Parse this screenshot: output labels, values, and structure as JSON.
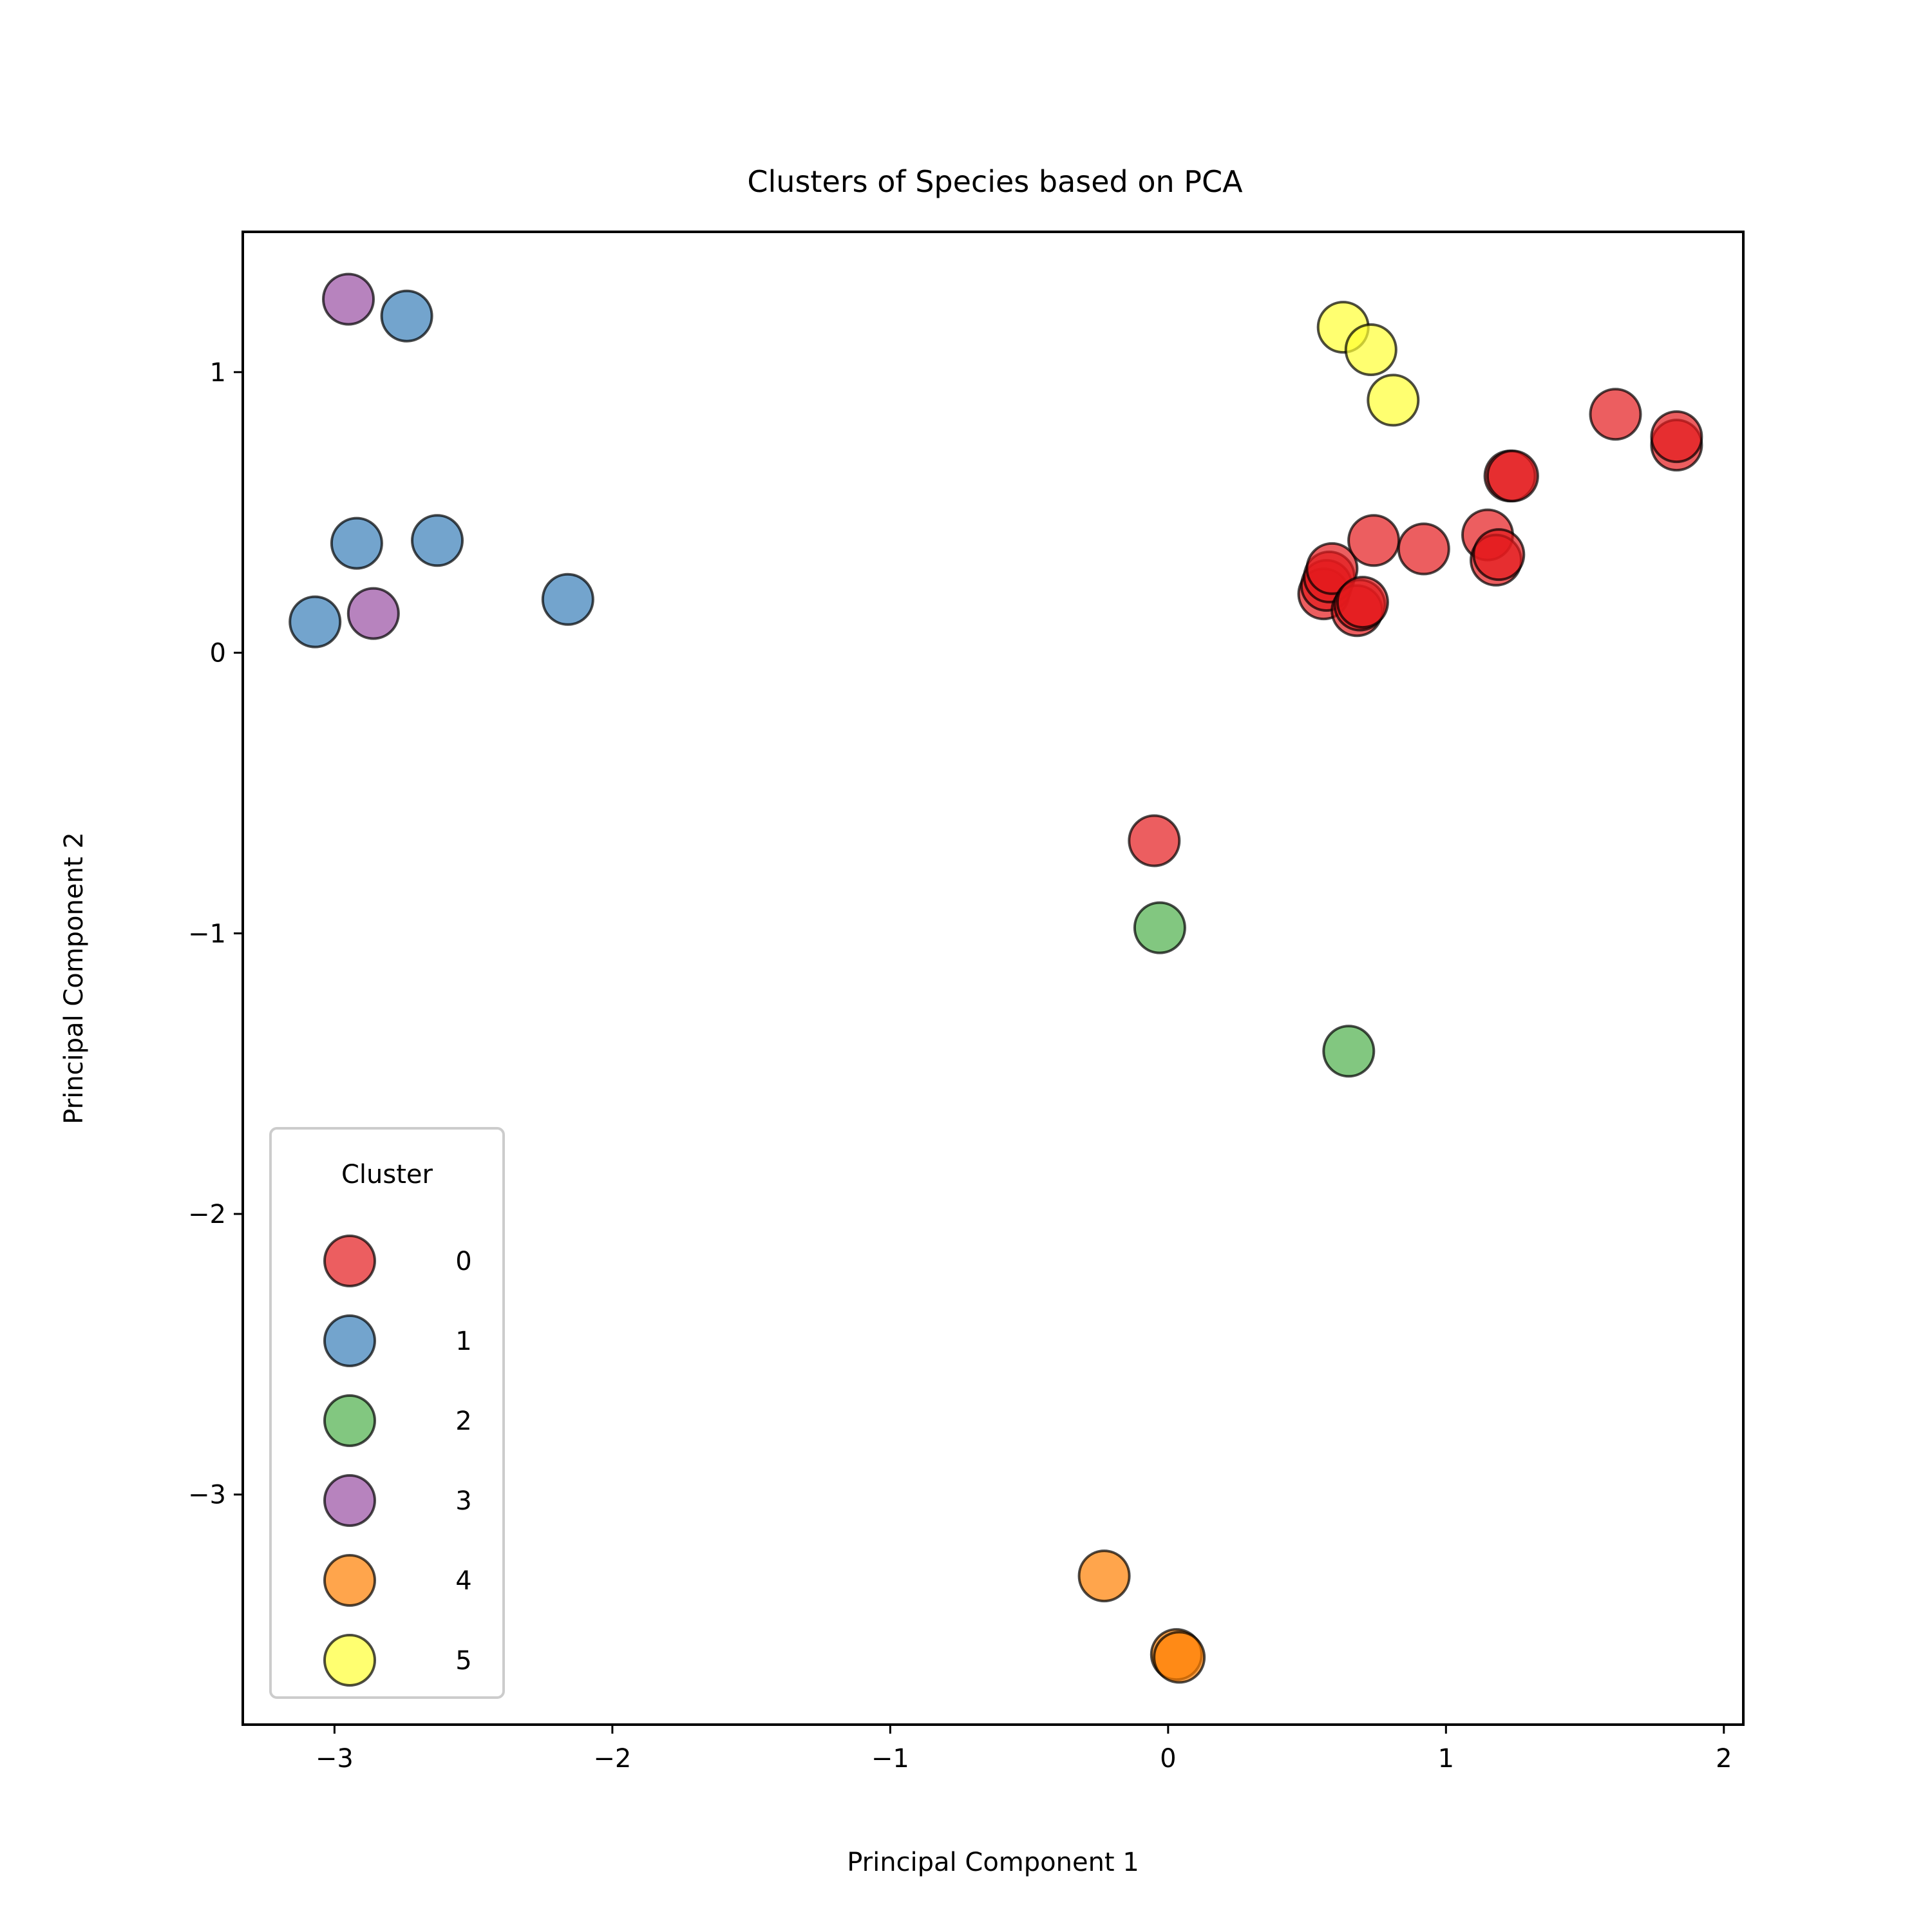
{
  "chart_data": {
    "type": "scatter",
    "title": "Clusters of Species based on PCA",
    "xlabel": "Principal Component 1",
    "ylabel": "Principal Component 2",
    "xlim": [
      -3.33,
      2.07
    ],
    "ylim": [
      -3.82,
      1.5
    ],
    "xticks": [
      -3,
      -2,
      -1,
      0,
      1,
      2
    ],
    "yticks": [
      1,
      0,
      -1,
      -2,
      -3
    ],
    "xtick_labels": [
      "−3",
      "−2",
      "−1",
      "0",
      "1",
      "2"
    ],
    "ytick_labels": [
      "1",
      "0",
      "−1",
      "−2",
      "−3"
    ],
    "grid": false,
    "legend": {
      "title": "Cluster",
      "placement": "lower-left",
      "entries": [
        "0",
        "1",
        "2",
        "3",
        "4",
        "5"
      ]
    },
    "series": [
      {
        "name": "0",
        "color": "#e41a1c",
        "points": [
          [
            -0.05,
            -0.67
          ],
          [
            0.56,
            0.21
          ],
          [
            0.57,
            0.24
          ],
          [
            0.58,
            0.27
          ],
          [
            0.59,
            0.3
          ],
          [
            0.68,
            0.15
          ],
          [
            0.69,
            0.17
          ],
          [
            0.7,
            0.18
          ],
          [
            0.74,
            0.4
          ],
          [
            0.92,
            0.37
          ],
          [
            1.15,
            0.42
          ],
          [
            1.18,
            0.33
          ],
          [
            1.19,
            0.35
          ],
          [
            1.23,
            0.63
          ],
          [
            1.24,
            0.63
          ],
          [
            1.61,
            0.85
          ],
          [
            1.83,
            0.74
          ],
          [
            1.83,
            0.77
          ]
        ]
      },
      {
        "name": "1",
        "color": "#377eb8",
        "points": [
          [
            -3.07,
            0.11
          ],
          [
            -2.92,
            0.39
          ],
          [
            -2.74,
            1.2
          ],
          [
            -2.63,
            0.4
          ],
          [
            -2.16,
            0.19
          ]
        ]
      },
      {
        "name": "2",
        "color": "#4daf4a",
        "points": [
          [
            -0.03,
            -0.98
          ],
          [
            0.65,
            -1.42
          ]
        ]
      },
      {
        "name": "3",
        "color": "#984ea3",
        "points": [
          [
            -2.95,
            1.26
          ],
          [
            -2.86,
            0.14
          ]
        ]
      },
      {
        "name": "4",
        "color": "#ff7f00",
        "points": [
          [
            -0.23,
            -3.29
          ],
          [
            0.03,
            -3.57
          ],
          [
            0.04,
            -3.58
          ]
        ]
      },
      {
        "name": "5",
        "color": "#ffff33",
        "points": [
          [
            0.63,
            1.16
          ],
          [
            0.73,
            1.08
          ],
          [
            0.81,
            0.9
          ]
        ]
      }
    ]
  }
}
